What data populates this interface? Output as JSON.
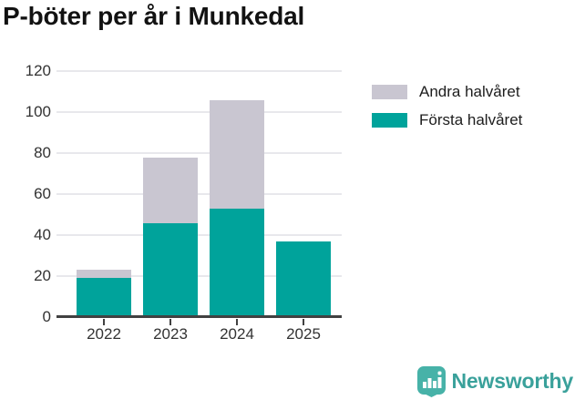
{
  "header": {
    "title": "P-böter per år i Munkedal"
  },
  "chart_data": {
    "type": "bar",
    "stacked": true,
    "title": "P-böter per år i Munkedal",
    "categories": [
      "2022",
      "2023",
      "2024",
      "2025"
    ],
    "series": [
      {
        "name": "Första halvåret",
        "color": "#00a39b",
        "values": [
          19,
          46,
          53,
          37
        ]
      },
      {
        "name": "Andra halvåret",
        "color": "#c9c6d1",
        "values": [
          4,
          32,
          53,
          0
        ]
      }
    ],
    "yticks": [
      0,
      20,
      40,
      60,
      80,
      100,
      120
    ],
    "ylim": [
      0,
      120
    ],
    "xlabel": "",
    "ylabel": "",
    "grid": true,
    "legend_position": "right",
    "legend_order": [
      "Andra halvåret",
      "Första halvåret"
    ]
  },
  "colors": {
    "axis": "#414141",
    "gridline": "#e8e8ec",
    "tick_text": "#333333"
  },
  "footer": {
    "brand": "Newsworthy",
    "brand_color": "#3aa19b",
    "logo_icon": "bar-chart-speech-bubble-icon",
    "logo_icon_color": "#47b2a8"
  }
}
